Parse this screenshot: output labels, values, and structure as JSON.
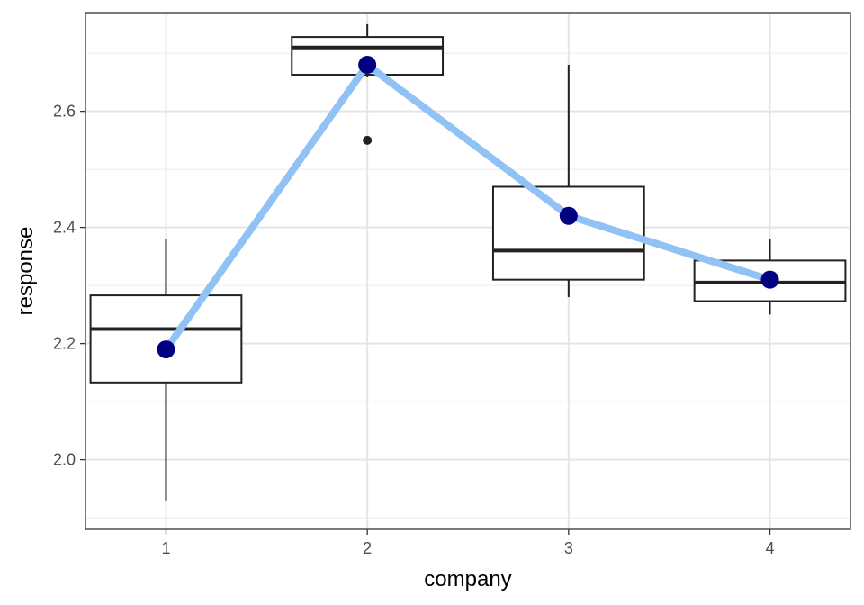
{
  "chart_data": {
    "type": "box",
    "title": "",
    "xlabel": "company",
    "ylabel": "response",
    "categories": [
      "1",
      "2",
      "3",
      "4"
    ],
    "ylim": [
      1.88,
      2.77
    ],
    "yticks": [
      2.0,
      2.2,
      2.4,
      2.6
    ],
    "ytick_labels": [
      "2.0",
      "2.2",
      "2.4",
      "2.6"
    ],
    "grid": true,
    "legend": "none",
    "boxes": [
      {
        "category": "1",
        "whisker_low": 1.93,
        "q1": 2.133,
        "median": 2.225,
        "q3": 2.283,
        "whisker_high": 2.38,
        "outliers": []
      },
      {
        "category": "2",
        "whisker_low": 2.66,
        "q1": 2.663,
        "median": 2.71,
        "q3": 2.728,
        "whisker_high": 2.75,
        "outliers": [
          2.55
        ]
      },
      {
        "category": "3",
        "whisker_low": 2.28,
        "q1": 2.31,
        "median": 2.36,
        "q3": 2.47,
        "whisker_high": 2.68,
        "outliers": []
      },
      {
        "category": "4",
        "whisker_low": 2.25,
        "q1": 2.273,
        "median": 2.305,
        "q3": 2.343,
        "whisker_high": 2.38,
        "outliers": []
      }
    ],
    "mean_series": {
      "values": [
        2.19,
        2.68,
        2.42,
        2.31
      ],
      "line_color": "#90c2f6",
      "point_color": "#000080"
    }
  }
}
